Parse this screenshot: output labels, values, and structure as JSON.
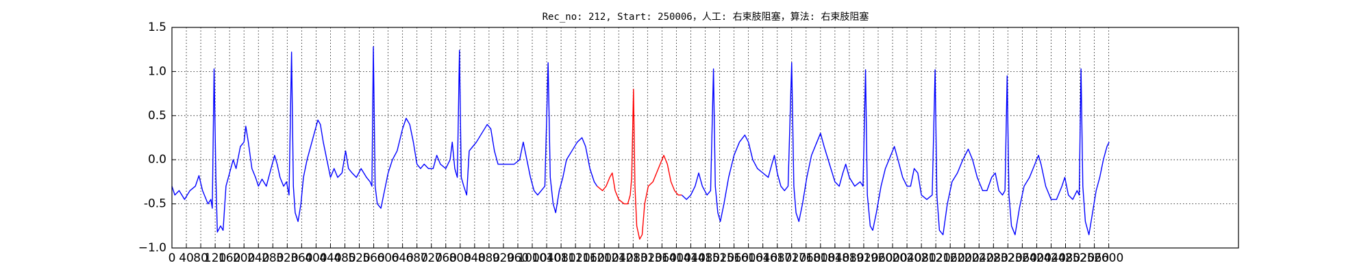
{
  "chart_data": {
    "type": "line",
    "title": "Rec_no: 212, Start: 250006，人工: 右束肢阻塞，算法: 右束肢阻塞",
    "xlim": [
      0,
      2960
    ],
    "ylim": [
      -1,
      1.5
    ],
    "xticks": [
      0,
      40,
      80,
      120,
      160,
      200,
      240,
      280,
      320,
      360,
      400,
      440,
      480,
      520,
      560,
      600,
      640,
      680,
      720,
      760,
      800,
      840,
      880,
      920,
      960,
      1000,
      1040,
      1080,
      1120,
      1160,
      1200,
      1240,
      1280,
      1320,
      1360,
      1400,
      1440,
      1480,
      1520,
      1560,
      1600,
      1640,
      1680,
      1720,
      1760,
      1800,
      1840,
      1880,
      1920,
      1960,
      2000,
      2040,
      2080,
      2120,
      2160,
      2200,
      2240,
      2280,
      2320,
      2360,
      2400,
      2440,
      2480,
      2520,
      2560,
      2600
    ],
    "yticks": [
      {
        "value": -1,
        "label": "−1.0"
      },
      -0.5,
      {
        "value": 0,
        "label": "0.0"
      },
      0.5,
      {
        "value": 1,
        "label": "1.0"
      },
      1.5
    ],
    "grid": true,
    "series": [
      {
        "color": "#0000ff",
        "x": [
          0,
          8,
          20,
          35,
          50,
          65,
          75,
          85,
          100,
          108,
          112,
          117,
          122,
          126,
          135,
          142,
          150,
          160,
          170,
          178,
          190,
          200,
          205,
          212,
          222,
          232,
          240,
          250,
          262,
          275,
          285,
          292,
          300,
          310,
          318,
          325,
          332,
          337,
          342,
          350,
          358,
          365,
          375,
          385,
          395,
          405,
          412,
          420,
          430,
          440,
          450,
          460,
          472,
          482,
          490,
          500,
          512,
          525,
          540,
          550,
          555,
          559,
          564,
          570,
          580,
          590,
          600,
          612,
          625,
          640,
          650,
          660,
          670,
          680,
          690,
          700,
          712,
          725,
          735,
          745,
          760,
          772,
          778,
          785,
          792,
          798,
          803,
          810,
          818,
          825,
          835,
          845,
          860,
          875,
          885,
          895,
          905,
          920,
          935,
          950,
          965,
          975,
          985,
          995,
          1005,
          1015,
          1025,
          1035,
          1044,
          1050,
          1058,
          1065,
          1075,
          1085,
          1095,
          1110,
          1125,
          1138,
          1148,
          1160,
          1172,
          1180
        ],
        "values": [
          -0.3,
          -0.4,
          -0.35,
          -0.45,
          -0.35,
          -0.3,
          -0.18,
          -0.35,
          -0.5,
          -0.45,
          -0.55,
          1.03,
          -0.2,
          -0.82,
          -0.75,
          -0.8,
          -0.3,
          -0.15,
          0,
          -0.1,
          0.15,
          0.2,
          0.38,
          0.2,
          -0.1,
          -0.2,
          -0.3,
          -0.22,
          -0.3,
          -0.1,
          0.05,
          -0.05,
          -0.2,
          -0.3,
          -0.25,
          -0.4,
          1.22,
          -0.3,
          -0.6,
          -0.7,
          -0.5,
          -0.2,
          0,
          0.15,
          0.3,
          0.45,
          0.4,
          0.2,
          0,
          -0.2,
          -0.1,
          -0.2,
          -0.15,
          0.1,
          -0.1,
          -0.15,
          -0.2,
          -0.1,
          -0.2,
          -0.25,
          -0.3,
          1.28,
          -0.3,
          -0.5,
          -0.55,
          -0.35,
          -0.15,
          0,
          0.1,
          0.35,
          0.47,
          0.4,
          0.2,
          -0.05,
          -0.1,
          -0.05,
          -0.1,
          -0.1,
          0.05,
          -0.05,
          -0.1,
          0,
          0.2,
          -0.1,
          -0.2,
          1.24,
          -0.2,
          -0.3,
          -0.4,
          0.1,
          0.15,
          0.2,
          0.3,
          0.4,
          0.35,
          0.1,
          -0.05,
          -0.05,
          -0.05,
          -0.05,
          0,
          0.2,
          0,
          -0.2,
          -0.35,
          -0.4,
          -0.35,
          -0.3,
          1.1,
          -0.2,
          -0.5,
          -0.6,
          -0.35,
          -0.2,
          0,
          0.1,
          0.2,
          0.25,
          0.15,
          -0.1,
          -0.25,
          -0.3
        ]
      },
      {
        "color": "#ff0000",
        "x": [
          1180,
          1195,
          1205,
          1215,
          1222,
          1230,
          1240,
          1255,
          1265,
          1272,
          1276,
          1281,
          1285,
          1290,
          1298,
          1305,
          1312,
          1322,
          1335,
          1345,
          1355,
          1365,
          1375,
          1385,
          1395,
          1405,
          1415
        ],
        "values": [
          -0.3,
          -0.35,
          -0.3,
          -0.2,
          -0.15,
          -0.35,
          -0.45,
          -0.5,
          -0.5,
          -0.4,
          -0.2,
          0.8,
          -0.3,
          -0.75,
          -0.9,
          -0.85,
          -0.5,
          -0.3,
          -0.25,
          -0.15,
          -0.05,
          0.05,
          -0.05,
          -0.25,
          -0.35,
          -0.4,
          -0.4
        ]
      },
      {
        "color": "#0000ff",
        "x": [
          1415,
          1428,
          1440,
          1452,
          1462,
          1472,
          1485,
          1495,
          1503,
          1508,
          1515,
          1522,
          1532,
          1545,
          1560,
          1575,
          1590,
          1600,
          1612,
          1625,
          1640,
          1655,
          1665,
          1672,
          1680,
          1690,
          1700,
          1710,
          1720,
          1726,
          1732,
          1740,
          1750,
          1762,
          1775,
          1790,
          1800,
          1810,
          1825,
          1840,
          1852,
          1862,
          1870,
          1880,
          1895,
          1910,
          1918,
          1925,
          1930,
          1938,
          1945,
          1955,
          1968,
          1980,
          1995,
          2005,
          2015,
          2028,
          2040,
          2050,
          2060,
          2070,
          2080,
          2095,
          2110,
          2118,
          2123,
          2130,
          2140,
          2152,
          2165,
          2180,
          2195,
          2210,
          2222,
          2235,
          2250,
          2262,
          2275,
          2285,
          2295,
          2305,
          2312,
          2318,
          2323,
          2330,
          2340,
          2352,
          2365,
          2380,
          2395,
          2405,
          2412,
          2425,
          2440,
          2455,
          2470,
          2478,
          2488,
          2500,
          2512,
          2518,
          2523,
          2528,
          2535,
          2545,
          2555,
          2565,
          2575,
          2585,
          2595,
          2601
        ],
        "values": [
          -0.4,
          -0.45,
          -0.4,
          -0.3,
          -0.15,
          -0.3,
          -0.4,
          -0.35,
          1.03,
          -0.3,
          -0.6,
          -0.7,
          -0.5,
          -0.2,
          0.05,
          0.2,
          0.28,
          0.2,
          0,
          -0.1,
          -0.15,
          -0.2,
          -0.05,
          0.05,
          -0.15,
          -0.3,
          -0.35,
          -0.3,
          1.1,
          -0.3,
          -0.6,
          -0.7,
          -0.5,
          -0.2,
          0.05,
          0.2,
          0.3,
          0.15,
          -0.05,
          -0.25,
          -0.3,
          -0.15,
          -0.05,
          -0.2,
          -0.3,
          -0.25,
          -0.3,
          1.02,
          -0.4,
          -0.75,
          -0.8,
          -0.6,
          -0.3,
          -0.1,
          0.05,
          0.15,
          0,
          -0.2,
          -0.3,
          -0.3,
          -0.1,
          -0.15,
          -0.4,
          -0.45,
          -0.4,
          1.02,
          -0.4,
          -0.8,
          -0.85,
          -0.5,
          -0.25,
          -0.15,
          0,
          0.12,
          0,
          -0.2,
          -0.35,
          -0.35,
          -0.2,
          -0.15,
          -0.35,
          -0.4,
          -0.35,
          0.95,
          -0.4,
          -0.75,
          -0.85,
          -0.55,
          -0.3,
          -0.2,
          -0.05,
          0.05,
          -0.05,
          -0.3,
          -0.45,
          -0.45,
          -0.3,
          -0.2,
          -0.4,
          -0.45,
          -0.35,
          -0.4,
          1.03,
          -0.3,
          -0.7,
          -0.85,
          -0.6,
          -0.35,
          -0.2,
          0,
          0.15,
          0.2
        ]
      }
    ]
  }
}
